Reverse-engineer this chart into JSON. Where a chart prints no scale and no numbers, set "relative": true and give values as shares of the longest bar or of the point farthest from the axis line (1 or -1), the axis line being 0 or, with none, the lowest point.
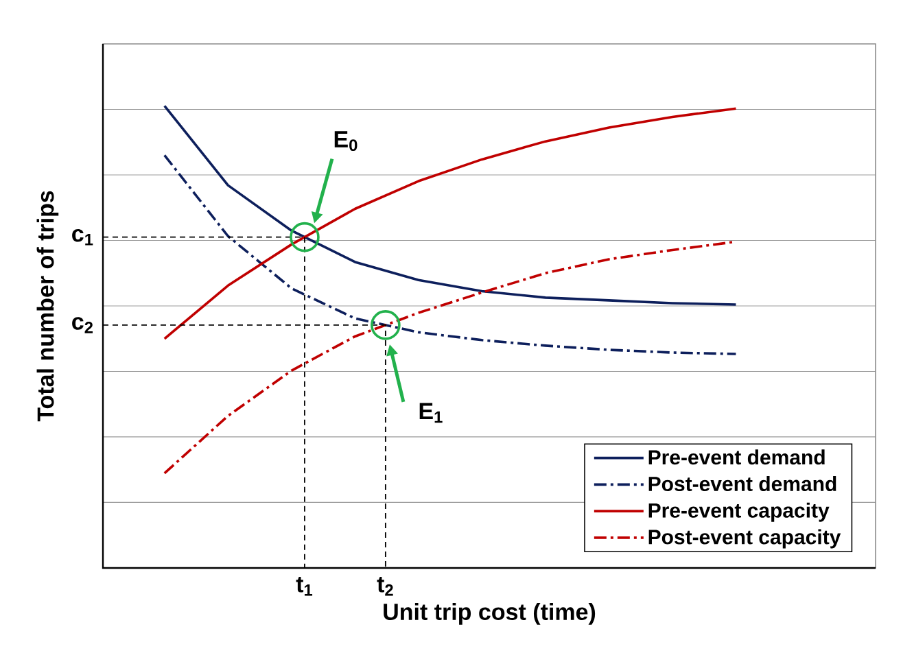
{
  "chart_data": {
    "type": "line",
    "xlabel": "Unit trip cost (time)",
    "ylabel": "Total number of trips",
    "relative": true,
    "grid": "y",
    "legend": "bottom right",
    "categories": [
      null,
      null,
      null,
      null,
      null,
      null,
      null,
      null,
      null,
      null
    ],
    "series": [
      {
        "name": "Pre-event demand",
        "color": "#0d1f5c",
        "line_style": "solid",
        "values": [
          1,
          0.828,
          0.73,
          0.662,
          0.623,
          0.599,
          0.585,
          0.579,
          0.573,
          0.57
        ]
      },
      {
        "name": "Post-event demand",
        "color": "#0d1f5c",
        "line_style": "dashed",
        "values": [
          0.893,
          0.718,
          0.605,
          0.54,
          0.51,
          0.493,
          0.481,
          0.472,
          0.466,
          0.463
        ]
      },
      {
        "name": "Pre-event capacity",
        "color": "#c00000",
        "line_style": "solid",
        "values": [
          0.496,
          0.611,
          0.7,
          0.777,
          0.837,
          0.884,
          0.923,
          0.953,
          0.976,
          0.994
        ]
      },
      {
        "name": "Post-event capacity",
        "color": "#c00000",
        "line_style": "dashed",
        "values": [
          0.205,
          0.329,
          0.427,
          0.501,
          0.552,
          0.596,
          0.638,
          0.668,
          0.688,
          0.706
        ]
      }
    ],
    "annotations": [
      "E$_{0}$",
      "E$_{1}$",
      "t$_{1}$",
      "t$_{2}$",
      "c$_{1}$",
      "c$_{2}$"
    ]
  }
}
